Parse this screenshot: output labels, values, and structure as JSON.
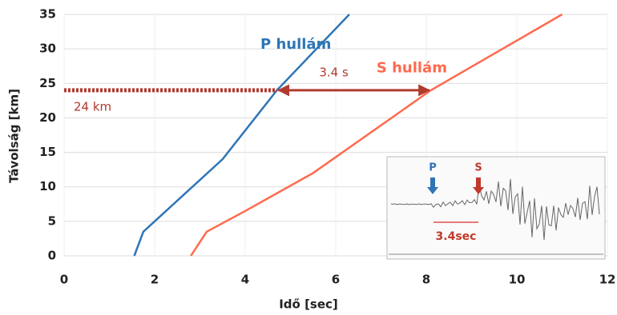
{
  "chart_data": {
    "type": "line",
    "x_label": "Idő [sec]",
    "y_label": "Távolság [km]",
    "xlim": [
      0,
      12
    ],
    "ylim": [
      0,
      35
    ],
    "xticks": [
      0,
      2,
      4,
      6,
      8,
      10,
      12
    ],
    "yticks": [
      0,
      5,
      10,
      15,
      20,
      25,
      30,
      35
    ],
    "grid": true,
    "series": [
      {
        "name": "P hullám",
        "color": "#2e75b6",
        "x": [
          1.55,
          1.75,
          2.5,
          3.5,
          4.7,
          6.3
        ],
        "values": [
          0,
          3.5,
          8,
          14,
          24,
          35
        ]
      },
      {
        "name": "S hullám",
        "color": "#ff6a4d",
        "x": [
          2.8,
          3.15,
          4,
          5.5,
          8.1,
          11
        ],
        "values": [
          0,
          3.5,
          6.5,
          12,
          24,
          35
        ]
      }
    ],
    "marker": {
      "value": 24,
      "label": "24 km",
      "color": "#b03a2e"
    },
    "interval": {
      "value": 3.4,
      "label": "3.4 s"
    },
    "inset": {
      "p_label": "P",
      "s_label": "S",
      "interval_label": "3.4sec"
    }
  }
}
